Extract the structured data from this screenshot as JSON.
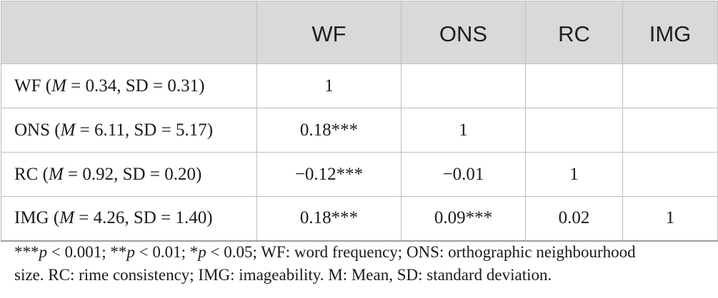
{
  "table": {
    "columns": [
      "",
      "WF",
      "ONS",
      "RC",
      "IMG"
    ],
    "rows": [
      {
        "name": "WF",
        "mean_label": "M",
        "mean_value": "0.34",
        "sd_label": "SD",
        "sd_value": "0.31",
        "cells": [
          "1",
          "",
          "",
          ""
        ]
      },
      {
        "name": "ONS",
        "mean_label": "M",
        "mean_value": "6.11",
        "sd_label": "SD",
        "sd_value": "5.17",
        "cells": [
          "0.18***",
          "1",
          "",
          ""
        ]
      },
      {
        "name": "RC",
        "mean_label": "M",
        "mean_value": "0.92",
        "sd_label": "SD",
        "sd_value": "0.20",
        "cells": [
          "−0.12***",
          "−0.01",
          "1",
          ""
        ]
      },
      {
        "name": "IMG",
        "mean_label": "M",
        "mean_value": "4.26",
        "sd_label": "SD",
        "sd_value": "1.40",
        "cells": [
          "0.18***",
          "0.09***",
          "0.02",
          "1"
        ]
      }
    ]
  },
  "footnote": {
    "stars3": "***",
    "p": "p",
    "p3_rest": " < 0.001; ",
    "stars2": "**",
    "p2_rest": " < 0.01; ",
    "stars1": "*",
    "p1_rest": " < 0.05; WF: word frequency; ONS: orthographic neighbourhood",
    "line2": "size. RC: rime consistency; IMG: imageability. M: Mean, SD: standard deviation."
  }
}
